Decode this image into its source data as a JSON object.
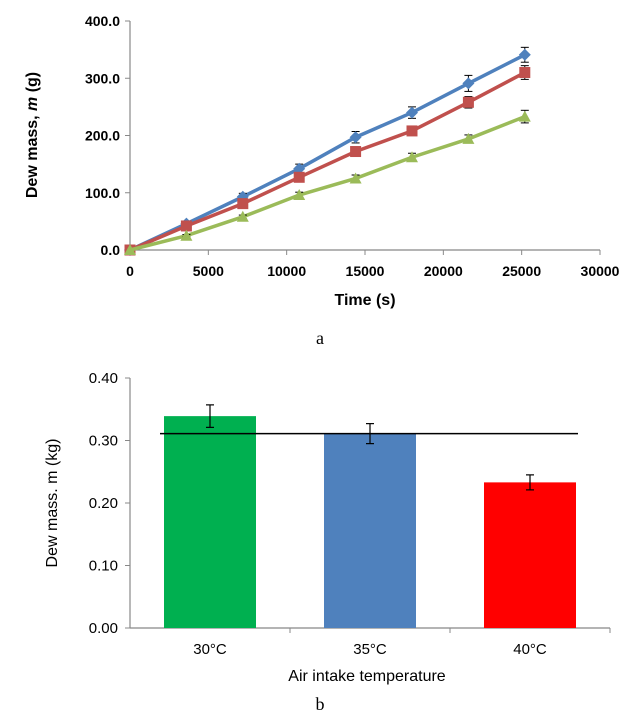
{
  "chart_data": [
    {
      "type": "line",
      "panel_label": "a",
      "xlabel": "Time (s)",
      "ylabel_prefix": "Dew mass, ",
      "ylabel_var": "m",
      "ylabel_suffix": " (g)",
      "xlim": [
        0,
        30000
      ],
      "ylim": [
        0,
        400
      ],
      "x_ticks": [
        "0",
        "5000",
        "10000",
        "15000",
        "20000",
        "25000",
        "30000"
      ],
      "y_ticks": [
        "0.0",
        "100.0",
        "200.0",
        "300.0",
        "400.0"
      ],
      "grid": false,
      "series": [
        {
          "color": "#4f81bd",
          "marker": "diamond",
          "x": [
            0,
            3600,
            7200,
            10800,
            14400,
            18000,
            21600,
            25200
          ],
          "y": [
            0,
            46,
            93,
            142,
            197,
            240,
            291,
            341
          ],
          "err": [
            0,
            4,
            6,
            8,
            10,
            10,
            14,
            13
          ]
        },
        {
          "color": "#c0504d",
          "marker": "square",
          "x": [
            0,
            3600,
            7200,
            10800,
            14400,
            18000,
            21600,
            25200
          ],
          "y": [
            0,
            42,
            81,
            127,
            172,
            208,
            258,
            310
          ],
          "err": [
            0,
            3,
            5,
            7,
            8,
            8,
            10,
            12
          ]
        },
        {
          "color": "#9bbb59",
          "marker": "triangle",
          "x": [
            0,
            3600,
            7200,
            10800,
            14400,
            18000,
            21600,
            25200
          ],
          "y": [
            0,
            25,
            58,
            96,
            125,
            162,
            194,
            233
          ],
          "err": [
            0,
            2,
            3,
            5,
            6,
            7,
            7,
            11
          ]
        }
      ]
    },
    {
      "type": "bar",
      "panel_label": "b",
      "xlabel": "Air intake temperature",
      "ylabel": "Dew mass. m (kg)",
      "categories": [
        "30°C",
        "35°C",
        "40°C"
      ],
      "values": [
        0.339,
        0.311,
        0.233
      ],
      "errors": [
        0.018,
        0.016,
        0.012
      ],
      "colors": [
        "#00b050",
        "#4f81bd",
        "#ff0000"
      ],
      "reference_line": 0.311,
      "ylim": [
        0,
        0.4
      ],
      "y_ticks": [
        "0.00",
        "0.10",
        "0.20",
        "0.30",
        "0.40"
      ],
      "grid": false
    }
  ]
}
